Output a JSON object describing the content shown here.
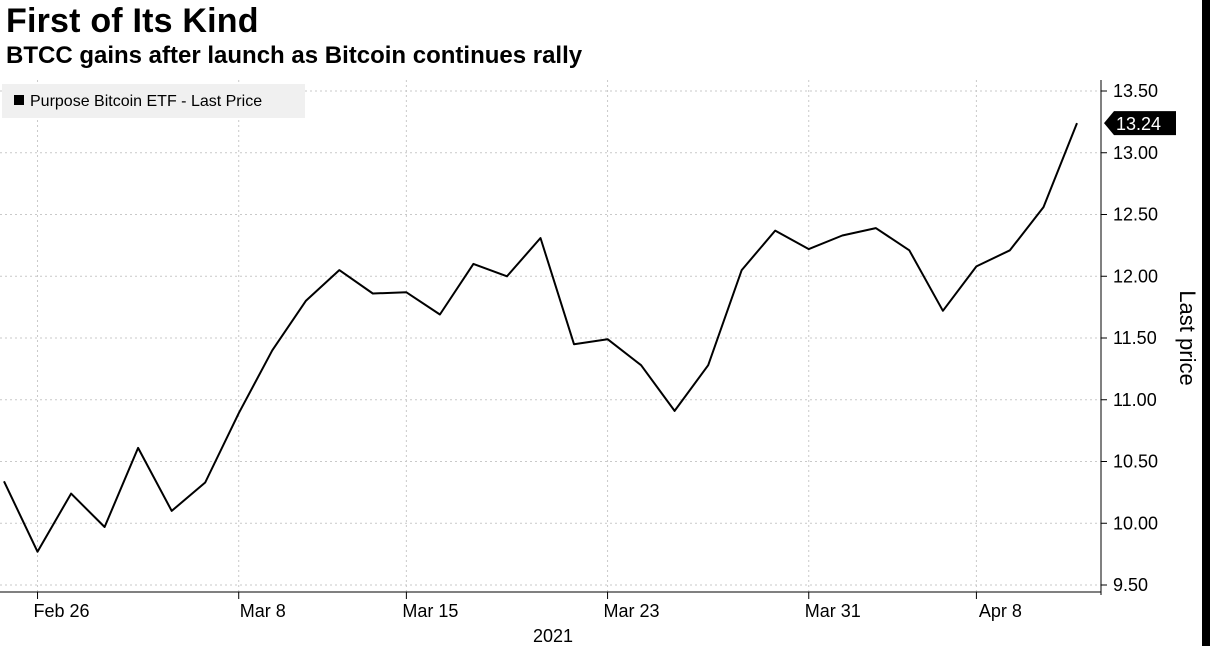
{
  "header": {
    "title": "First of Its Kind",
    "subtitle": "BTCC gains after launch as Bitcoin continues rally"
  },
  "colors": {
    "line": "#000000",
    "background": "#ffffff",
    "grid": "#c9c9c9",
    "legend_bg": "#f0f0f0",
    "badge_bg": "#000000",
    "badge_text": "#ffffff"
  },
  "chart_data": {
    "type": "line",
    "title": "First of Its Kind",
    "subtitle": "BTCC gains after launch as Bitcoin continues rally",
    "xlabel": "2021",
    "ylabel": "Last price",
    "legend": {
      "entries": [
        "Purpose Bitcoin ETF - Last Price"
      ],
      "placement": "top-left"
    },
    "grid": true,
    "ylim": [
      9.5,
      13.5
    ],
    "yticks": [
      "13.50",
      "13.00",
      "12.50",
      "12.00",
      "11.50",
      "11.00",
      "10.50",
      "10.00",
      "9.50"
    ],
    "xticks": [
      "Feb 26",
      "Mar 8",
      "Mar 15",
      "Mar 23",
      "Mar 31",
      "Apr 8"
    ],
    "x_year_label": "2021",
    "last_value_label": "13.24",
    "series": [
      {
        "name": "Purpose Bitcoin ETF - Last Price",
        "values": [
          10.34,
          9.77,
          10.24,
          9.97,
          10.61,
          10.1,
          10.33,
          10.89,
          11.4,
          11.8,
          12.05,
          11.86,
          11.87,
          11.69,
          12.1,
          12.0,
          12.31,
          11.45,
          11.49,
          11.28,
          10.91,
          11.28,
          12.05,
          12.37,
          12.22,
          12.33,
          12.39,
          12.21,
          11.72,
          12.08,
          12.21,
          12.56,
          13.24
        ]
      }
    ]
  }
}
